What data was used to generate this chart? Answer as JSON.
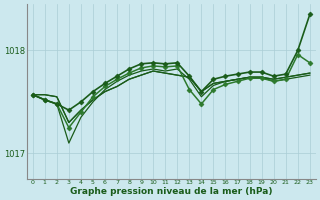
{
  "background_color": "#cce8ee",
  "grid_color": "#aacdd5",
  "line_color_dark": "#1a5c1a",
  "line_color_med": "#2d7a2d",
  "xlabel": "Graphe pression niveau de la mer (hPa)",
  "xlim": [
    -0.5,
    23.5
  ],
  "ylim": [
    1016.75,
    1018.45
  ],
  "yticks": [
    1017.0,
    1018.0
  ],
  "xticks": [
    0,
    1,
    2,
    3,
    4,
    5,
    6,
    7,
    8,
    9,
    10,
    11,
    12,
    13,
    14,
    15,
    16,
    17,
    18,
    19,
    20,
    21,
    22,
    23
  ],
  "series": [
    {
      "y": [
        1017.57,
        1017.57,
        1017.55,
        1017.3,
        1017.42,
        1017.52,
        1017.6,
        1017.65,
        1017.72,
        1017.76,
        1017.8,
        1017.78,
        1017.76,
        1017.74,
        1017.6,
        1017.68,
        1017.7,
        1017.72,
        1017.74,
        1017.74,
        1017.72,
        1017.74,
        1017.76,
        1017.78
      ],
      "color": "#1a5c1a",
      "lw": 0.9,
      "marker": null
    },
    {
      "y": [
        1017.57,
        1017.57,
        1017.55,
        1017.3,
        1017.42,
        1017.52,
        1017.6,
        1017.65,
        1017.72,
        1017.76,
        1017.8,
        1017.78,
        1017.76,
        1017.74,
        1017.6,
        1017.68,
        1017.7,
        1017.72,
        1017.74,
        1017.74,
        1017.72,
        1017.74,
        1017.76,
        1017.78
      ],
      "color": "#1a5c1a",
      "lw": 0.9,
      "marker": null
    },
    {
      "y": [
        1017.57,
        1017.52,
        1017.48,
        1017.1,
        1017.35,
        1017.5,
        1017.62,
        1017.7,
        1017.76,
        1017.8,
        1017.82,
        1017.8,
        1017.82,
        1017.72,
        1017.55,
        1017.66,
        1017.7,
        1017.72,
        1017.74,
        1017.74,
        1017.7,
        1017.72,
        1017.74,
        1017.76
      ],
      "color": "#1a5c1a",
      "lw": 0.9,
      "marker": null
    },
    {
      "y": [
        1017.57,
        1017.52,
        1017.48,
        1017.25,
        1017.4,
        1017.55,
        1017.65,
        1017.72,
        1017.78,
        1017.83,
        1017.85,
        1017.84,
        1017.85,
        1017.62,
        1017.48,
        1017.62,
        1017.67,
        1017.7,
        1017.73,
        1017.73,
        1017.7,
        1017.72,
        1017.96,
        1017.88
      ],
      "color": "#2d7a2d",
      "lw": 1.1,
      "marker": "D"
    },
    {
      "y": [
        1017.57,
        1017.52,
        1017.48,
        1017.42,
        1017.5,
        1017.6,
        1017.68,
        1017.75,
        1017.82,
        1017.87,
        1017.88,
        1017.87,
        1017.88,
        1017.75,
        1017.6,
        1017.72,
        1017.75,
        1017.77,
        1017.79,
        1017.79,
        1017.75,
        1017.77,
        1018.0,
        1018.35
      ],
      "color": "#1a5c1a",
      "lw": 1.2,
      "marker": "D"
    }
  ],
  "marker_size": 2.5
}
